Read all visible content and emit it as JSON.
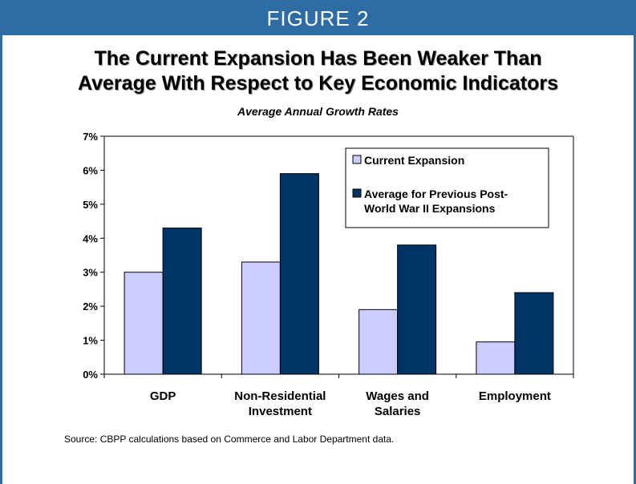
{
  "header": {
    "label": "FIGURE 2"
  },
  "title_lines": [
    "The Current Expansion Has Been Weaker Than",
    "Average With Respect to Key Economic Indicators"
  ],
  "subtitle": "Average Annual Growth Rates",
  "source": "Source:  CBPP calculations based on Commerce and Labor Department data.",
  "colors": {
    "current": "#ccccff",
    "previous": "#003366",
    "header": "#2e6da4"
  },
  "chart_data": {
    "type": "bar",
    "categories": [
      [
        "GDP"
      ],
      [
        "Non-Residential",
        "Investment"
      ],
      [
        "Wages and",
        "Salaries"
      ],
      [
        "Employment"
      ]
    ],
    "series": [
      {
        "name": "Current Expansion",
        "values": [
          3.0,
          3.3,
          1.9,
          0.95
        ]
      },
      {
        "name": "Average for Previous Post-World War II Expansions",
        "values": [
          4.3,
          5.9,
          3.8,
          2.4
        ]
      }
    ],
    "legend_lines": [
      [
        "Current Expansion"
      ],
      [
        "Average for Previous Post-",
        "World War II Expansions"
      ]
    ],
    "y_ticks": [
      "0%",
      "1%",
      "2%",
      "3%",
      "4%",
      "5%",
      "6%",
      "7%"
    ],
    "ylim": [
      0,
      7
    ],
    "xlabel": "",
    "ylabel": "",
    "legend_position": "top-right",
    "grid": false
  }
}
